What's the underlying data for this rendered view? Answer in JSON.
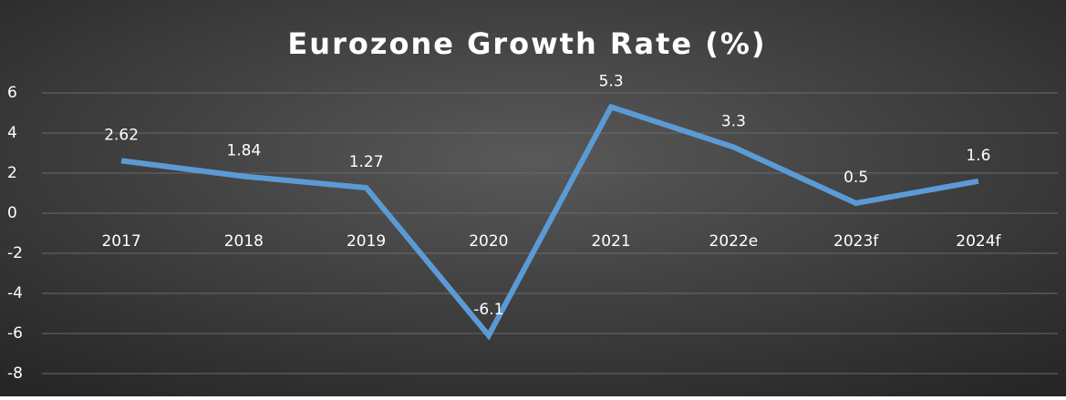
{
  "chart_data": {
    "type": "line",
    "title": "Eurozone Growth Rate (%)",
    "categories": [
      "2017",
      "2018",
      "2019",
      "2020",
      "2021",
      "2022e",
      "2023f",
      "2024f"
    ],
    "series": [
      {
        "name": "Growth Rate",
        "color": "#5b9bd5",
        "values": [
          2.62,
          1.84,
          1.27,
          -6.1,
          5.3,
          3.3,
          0.5,
          1.6
        ]
      }
    ],
    "ylim": [
      -8,
      6
    ],
    "yticks": [
      -8,
      -6,
      -4,
      -2,
      0,
      2,
      4,
      6
    ],
    "grid": true
  }
}
